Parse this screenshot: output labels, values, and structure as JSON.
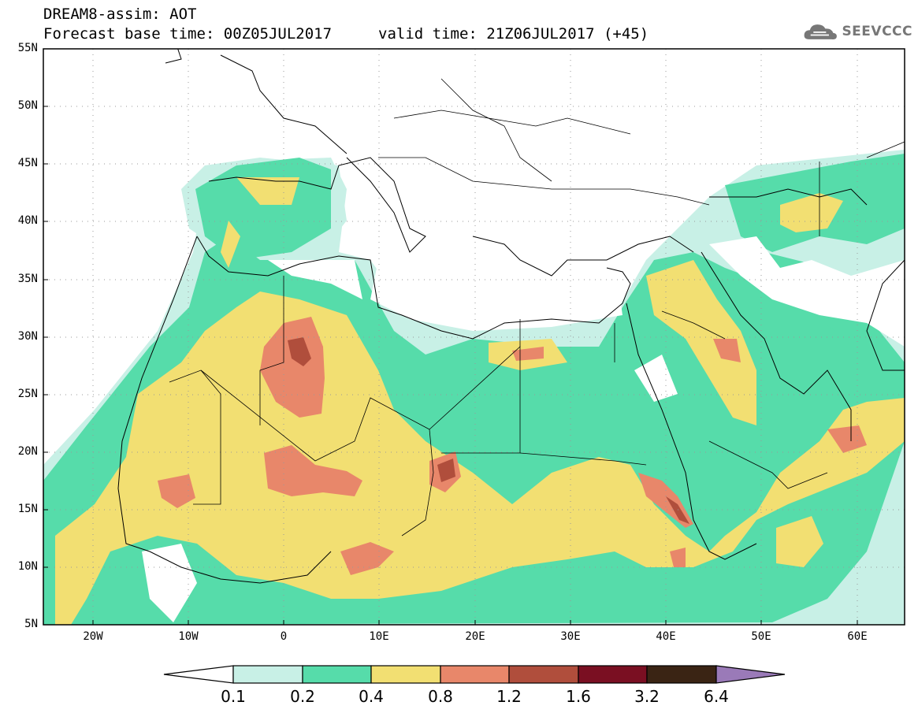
{
  "title": {
    "line1": "DREAM8-assim: AOT",
    "line2": "Forecast base time: 00Z05JUL2017",
    "valid": "valid time: 21Z06JUL2017 (+45)"
  },
  "logo": {
    "text": "SEEVCCC",
    "icon": "cloud-icon"
  },
  "map": {
    "lat_labels": [
      "55N",
      "50N",
      "45N",
      "40N",
      "35N",
      "30N",
      "25N",
      "20N",
      "15N",
      "10N",
      "5N"
    ],
    "lon_labels": [
      "20W",
      "10W",
      "0",
      "10E",
      "20E",
      "30E",
      "40E",
      "50E",
      "60E"
    ],
    "lon_range": [
      -25,
      65
    ],
    "lat_range": [
      5,
      55
    ]
  },
  "colorbar": {
    "levels": [
      "0.1",
      "0.2",
      "0.4",
      "0.8",
      "1.2",
      "1.6",
      "3.2",
      "6.4"
    ],
    "colors": [
      "#c8f0e6",
      "#56dcaa",
      "#f2df72",
      "#e8876a",
      "#b04e3c",
      "#7a0f22",
      "#3a2414",
      "#9a7ab8"
    ]
  }
}
